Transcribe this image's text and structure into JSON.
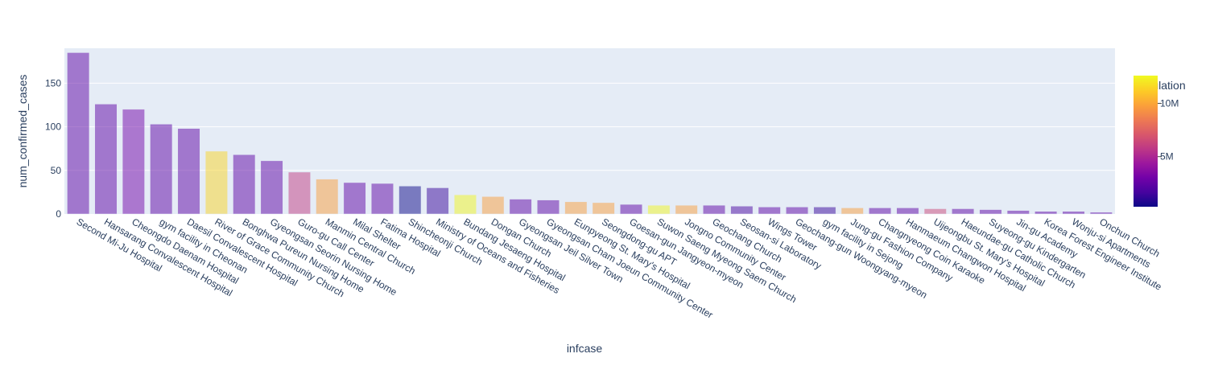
{
  "chart_data": {
    "type": "bar",
    "xlabel": "infcase",
    "ylabel": "num_confirmed_cases",
    "ylim": [
      0,
      190
    ],
    "yticks": [
      0,
      50,
      100,
      150
    ],
    "grid": true,
    "bar_opacity": 0.5,
    "categories": [
      "Second Mi-Ju Hospital",
      "Hansarang Convalescent Hospital",
      "Cheongdo Daenam Hospital",
      "gym facility in Cheonan",
      "Daesil Convalescent Hospital",
      "River of Grace Community Church",
      "Bonghwa Pureun Nursing Home",
      "Gyeongsan Seorin Nursing Home",
      "Guro-gu Call Center",
      "Manmin Central Church",
      "Milal Shelter",
      "Fatima Hospital",
      "Shincheonji Church",
      "Ministry of Oceans and Fisheries",
      "Bundang Jesaeng Hospital",
      "Dongan Church",
      "Gyeongsan Jeil Silver Town",
      "Gyeongsan Cham Joeun Community Center",
      "Eunpyeong St. Mary's Hospital",
      "Seongdong-gu APT",
      "Goesan-gun Jangyeon-myeon",
      "Suwon Saeng Myeong Saem Church",
      "Jongno Community Center",
      "Geochang Church",
      "Seosan-si Laboratory",
      "Wings Tower",
      "Geochang-gun Woongyang-myeon",
      "gym facility in Sejong",
      "Jung-gu Fashion Company",
      "Changnyeong Coin Karaoke",
      "Hanmaeum Changwon Hospital",
      "Uijeongbu St. Mary's Hospital",
      "Haeundae-gu Catholic Church",
      "Suyeong-gu Kindergarten",
      "Jin-gu Academy",
      "Korea Forest Engineer Institute",
      "Wonju-si Apartments",
      "Onchun Church"
    ],
    "values": [
      185,
      126,
      120,
      103,
      98,
      72,
      68,
      61,
      48,
      40,
      36,
      35,
      32,
      30,
      22,
      20,
      17,
      16,
      14,
      13,
      11,
      10,
      10,
      10,
      9,
      8,
      8,
      8,
      7,
      7,
      7,
      6,
      6,
      5,
      4,
      3,
      3,
      2
    ],
    "series_color": {
      "name": "population",
      "values": [
        2.4,
        2.4,
        3.0,
        2.4,
        2.4,
        11.5,
        2.4,
        2.4,
        6.0,
        9.8,
        2.4,
        2.4,
        0.3,
        1.3,
        12.5,
        9.8,
        2.4,
        2.4,
        9.8,
        9.8,
        2.4,
        12.5,
        9.8,
        2.4,
        1.8,
        2.4,
        2.4,
        1.3,
        9.8,
        2.4,
        2.4,
        6.5,
        2.4,
        2.4,
        2.4,
        2.4,
        2.4,
        2.4
      ],
      "unit": "M"
    },
    "colorbar": {
      "title": "population",
      "tick_labels": [
        "10M",
        "5M"
      ],
      "tick_values": [
        10,
        5
      ],
      "cmin": 0.3,
      "cmax": 12.6
    },
    "colorscale": [
      "#0d0887",
      "#46039f",
      "#7201a8",
      "#9c179e",
      "#bd3786",
      "#d8576b",
      "#ed7953",
      "#fb9f3a",
      "#fdca26",
      "#f0f921"
    ]
  }
}
